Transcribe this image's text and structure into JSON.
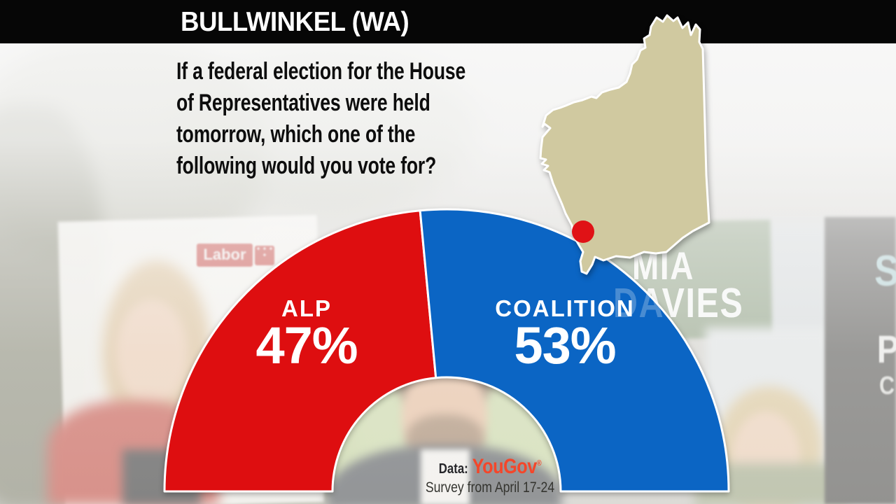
{
  "header": {
    "title": "BULLWINKEL (WA)"
  },
  "question": {
    "line1": "If a federal election for the House",
    "line2": "of Representatives were held",
    "line3": "tomorrow, which one of the",
    "line4": "following would you vote for?"
  },
  "chart_data": {
    "type": "pie",
    "subtype": "semicircular half-donut two-party-preferred gauge",
    "title": "BULLWINKEL (WA)",
    "question": "If a federal election for the House of Representatives were held tomorrow, which one of the following would you vote for?",
    "categories": [
      "ALP",
      "COALITION"
    ],
    "values": [
      47,
      53
    ],
    "unit": "%",
    "series_display": [
      {
        "label": "ALP",
        "value_text": "47%",
        "color": "#de0e10"
      },
      {
        "label": "COALITION",
        "value_text": "53%",
        "color": "#0b65c4"
      }
    ],
    "layout": {
      "start_angle_deg": 180,
      "end_angle_deg": 0,
      "legend": "none",
      "labels_inside_segments": true
    }
  },
  "map": {
    "region_name": "Western Australia",
    "fill_color": "#d0c9a0",
    "marker_color": "#e01216"
  },
  "attribution": {
    "prefix": "Data:",
    "source": "YouGov",
    "mark": "®",
    "note": "Survey from April 17-24"
  },
  "background_photo": {
    "labor_sign_text": "Labor",
    "labor_stars": "✦ ✦\n✦ ✦",
    "candidate_sign_line1": "MIA",
    "candidate_sign_line2": "DAVIES",
    "right_sign_letters": [
      "S",
      "P",
      "C"
    ]
  }
}
